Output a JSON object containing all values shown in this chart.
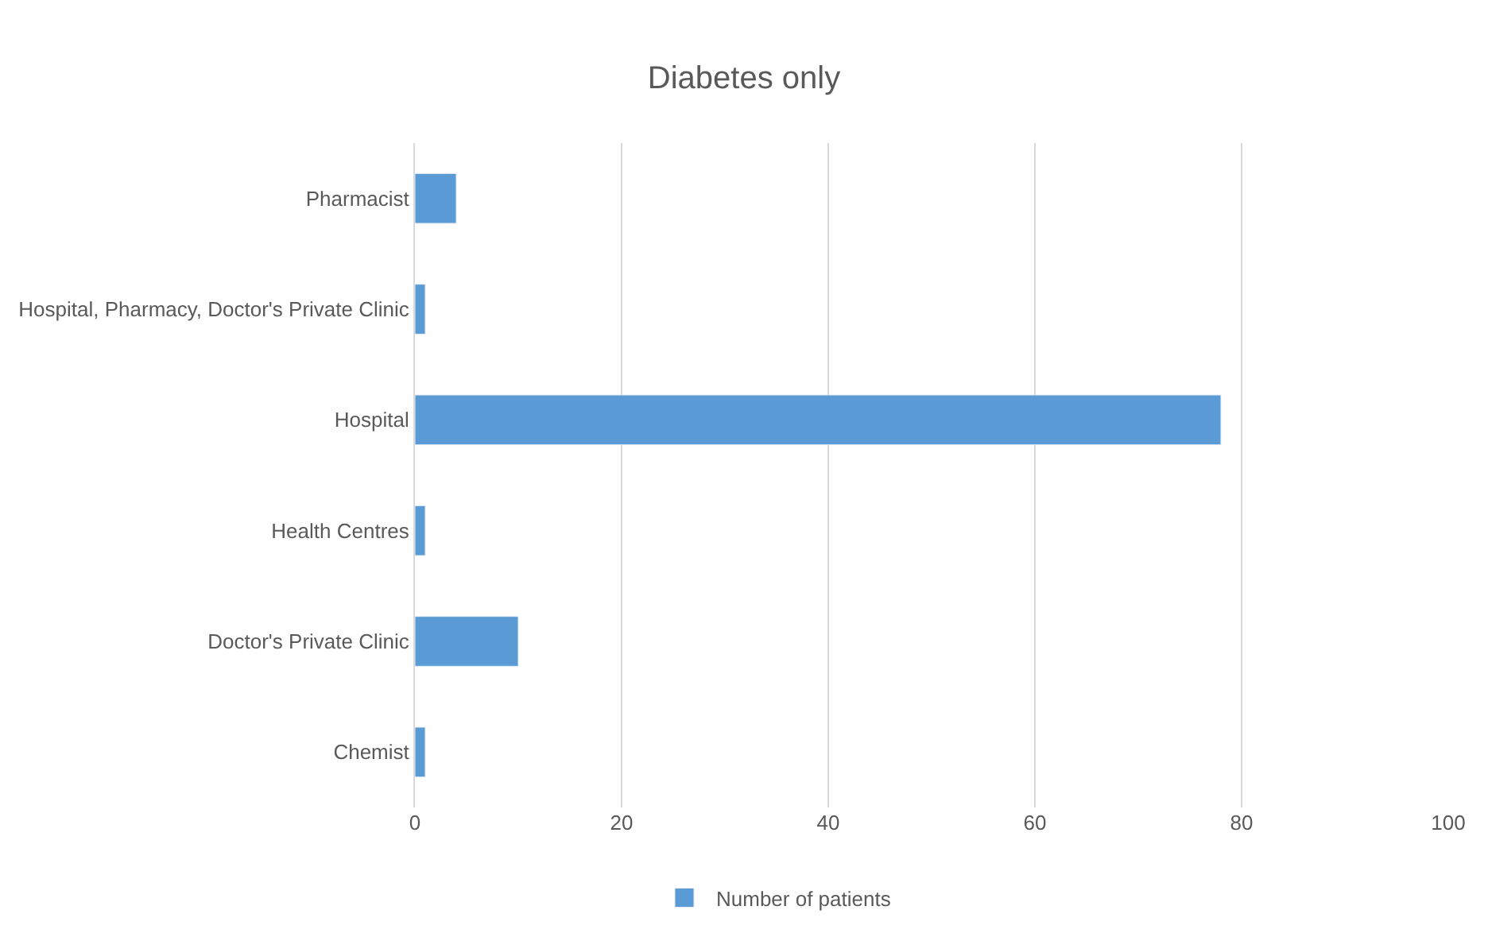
{
  "chart_data": {
    "type": "bar",
    "orientation": "horizontal",
    "title": "Diabetes only",
    "categories": [
      "Pharmacist",
      "Hospital, Pharmacy, Doctor's Private Clinic",
      "Hospital",
      "Health Centres",
      "Doctor's Private Clinic",
      "Chemist"
    ],
    "series": [
      {
        "name": "Number of patients",
        "color": "#5b9bd5",
        "values": [
          4,
          1,
          78,
          1,
          10,
          1
        ]
      }
    ],
    "xlim": [
      0,
      100
    ],
    "xticks": [
      0,
      20,
      40,
      60,
      80,
      100
    ],
    "grid": "x",
    "legend": "bottom"
  }
}
